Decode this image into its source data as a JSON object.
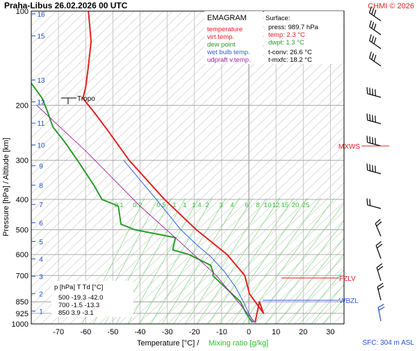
{
  "header": {
    "title": "Praha-Libus    26.02.2026 00 UTC",
    "copyright": "CHMI © 2026"
  },
  "axes": {
    "ylabel": "Pressure [hPa]  /  Altitude [km]",
    "xlabel_temp": "Temperature [°C]  /",
    "xlabel_mix": "Mixing ratio [g/kg]",
    "sfc": "SFC: 304 m ASL"
  },
  "legend": {
    "title": "EMAGRAM",
    "items": [
      {
        "label": "temperature",
        "color": "#e02020"
      },
      {
        "label": "virt.temp.",
        "color": "#e02020"
      },
      {
        "label": "dew point",
        "color": "#2a9a2a"
      },
      {
        "label": "wet bulb temp.",
        "color": "#3060d0"
      },
      {
        "label": "udpraft v.temp.",
        "color": "#a020a0"
      }
    ]
  },
  "surface": {
    "title": "Surface:",
    "lines": [
      {
        "text": "press: 989.7 hPa",
        "color": "#000000"
      },
      {
        "text": "temp: 2.3 °C",
        "color": "#e02020"
      },
      {
        "text": "dwpt: 1.3 °C",
        "color": "#2a9a2a"
      },
      {
        "text": "t-conv: 26.6 °C",
        "color": "#000000"
      },
      {
        "text": "t-mxfc: 18.2 °C",
        "color": "#000000"
      }
    ]
  },
  "levels_table": {
    "header": "p [hPa]    T     Td [°C]",
    "rows": [
      "500   -19.3    -42.0",
      "700    -1.5    -13.3",
      "850     3.9     -3.1"
    ]
  },
  "markers": {
    "tropo": "Tropo",
    "mxws": "MXWS",
    "fzlv": "FZLV",
    "wbzl": "WBZL"
  },
  "chart_data": {
    "type": "line",
    "title": "Praha-Libus    26.02.2026 00 UTC",
    "xlabel": "Temperature [°C]  /  Mixing ratio [g/kg]",
    "ylabel": "Pressure [hPa]  /  Altitude [km]",
    "x_range": [
      -80,
      35
    ],
    "y_range_hPa": [
      100,
      1000
    ],
    "y_scale": "log",
    "x_ticks": [
      -70,
      -60,
      -50,
      -40,
      -30,
      -20,
      -10,
      0,
      10,
      20,
      30
    ],
    "y_ticks": [
      100,
      200,
      300,
      400,
      500,
      600,
      700,
      850,
      925,
      1000
    ],
    "altitude_ticks_km": [
      1,
      2,
      3,
      4,
      5,
      6,
      7,
      8,
      9,
      10,
      11,
      12,
      13,
      15,
      16
    ],
    "mixing_ratio_labels": [
      "0.1",
      "0.2",
      "0.5",
      "1",
      "1",
      "1.4",
      "2",
      "3",
      "4",
      "6",
      "8",
      "10",
      "12",
      "15",
      "20",
      "25"
    ],
    "series": [
      {
        "name": "temperature",
        "color": "#e02020",
        "points": [
          [
            2.3,
            989.7
          ],
          [
            3.9,
            850
          ],
          [
            5.4,
            925
          ],
          [
            0.2,
            800
          ],
          [
            -1.5,
            700
          ],
          [
            -8,
            600
          ],
          [
            -19.3,
            500
          ],
          [
            -31,
            400
          ],
          [
            -44,
            300
          ],
          [
            -52,
            240
          ],
          [
            -57,
            210
          ],
          [
            -61,
            190
          ],
          [
            -60,
            175
          ],
          [
            -59,
            150
          ],
          [
            -58,
            125
          ],
          [
            -59,
            100
          ]
        ]
      },
      {
        "name": "dew point",
        "color": "#2a9a2a",
        "points": [
          [
            1.3,
            989.7
          ],
          [
            -1,
            925
          ],
          [
            -3.1,
            850
          ],
          [
            -5,
            820
          ],
          [
            -13.3,
            700
          ],
          [
            -13,
            690
          ],
          [
            -14,
            650
          ],
          [
            -22,
            600
          ],
          [
            -28,
            580
          ],
          [
            -27,
            530
          ],
          [
            -42,
            500
          ],
          [
            -47,
            480
          ],
          [
            -48,
            420
          ],
          [
            -54,
            400
          ],
          [
            -57,
            360
          ],
          [
            -63,
            300
          ],
          [
            -68,
            260
          ],
          [
            -72,
            235
          ],
          [
            -74,
            210
          ],
          [
            -76,
            190
          ],
          [
            -80,
            170
          ]
        ]
      },
      {
        "name": "wet bulb temp.",
        "color": "#3060d0",
        "points": [
          [
            1.8,
            989.7
          ],
          [
            0,
            925
          ],
          [
            -2,
            850
          ],
          [
            -5,
            760
          ],
          [
            -9,
            680
          ],
          [
            -14,
            610
          ],
          [
            -19,
            560
          ],
          [
            -25,
            500
          ],
          [
            -34,
            400
          ],
          [
            -46,
            300
          ]
        ]
      },
      {
        "name": "udpraft v.temp.",
        "color": "#a020a0",
        "points": [
          [
            2.3,
            989.7
          ],
          [
            -4,
            850
          ],
          [
            -12,
            700
          ],
          [
            -24,
            560
          ],
          [
            -40,
            420
          ],
          [
            -60,
            280
          ],
          [
            -78,
            200
          ]
        ]
      }
    ]
  }
}
